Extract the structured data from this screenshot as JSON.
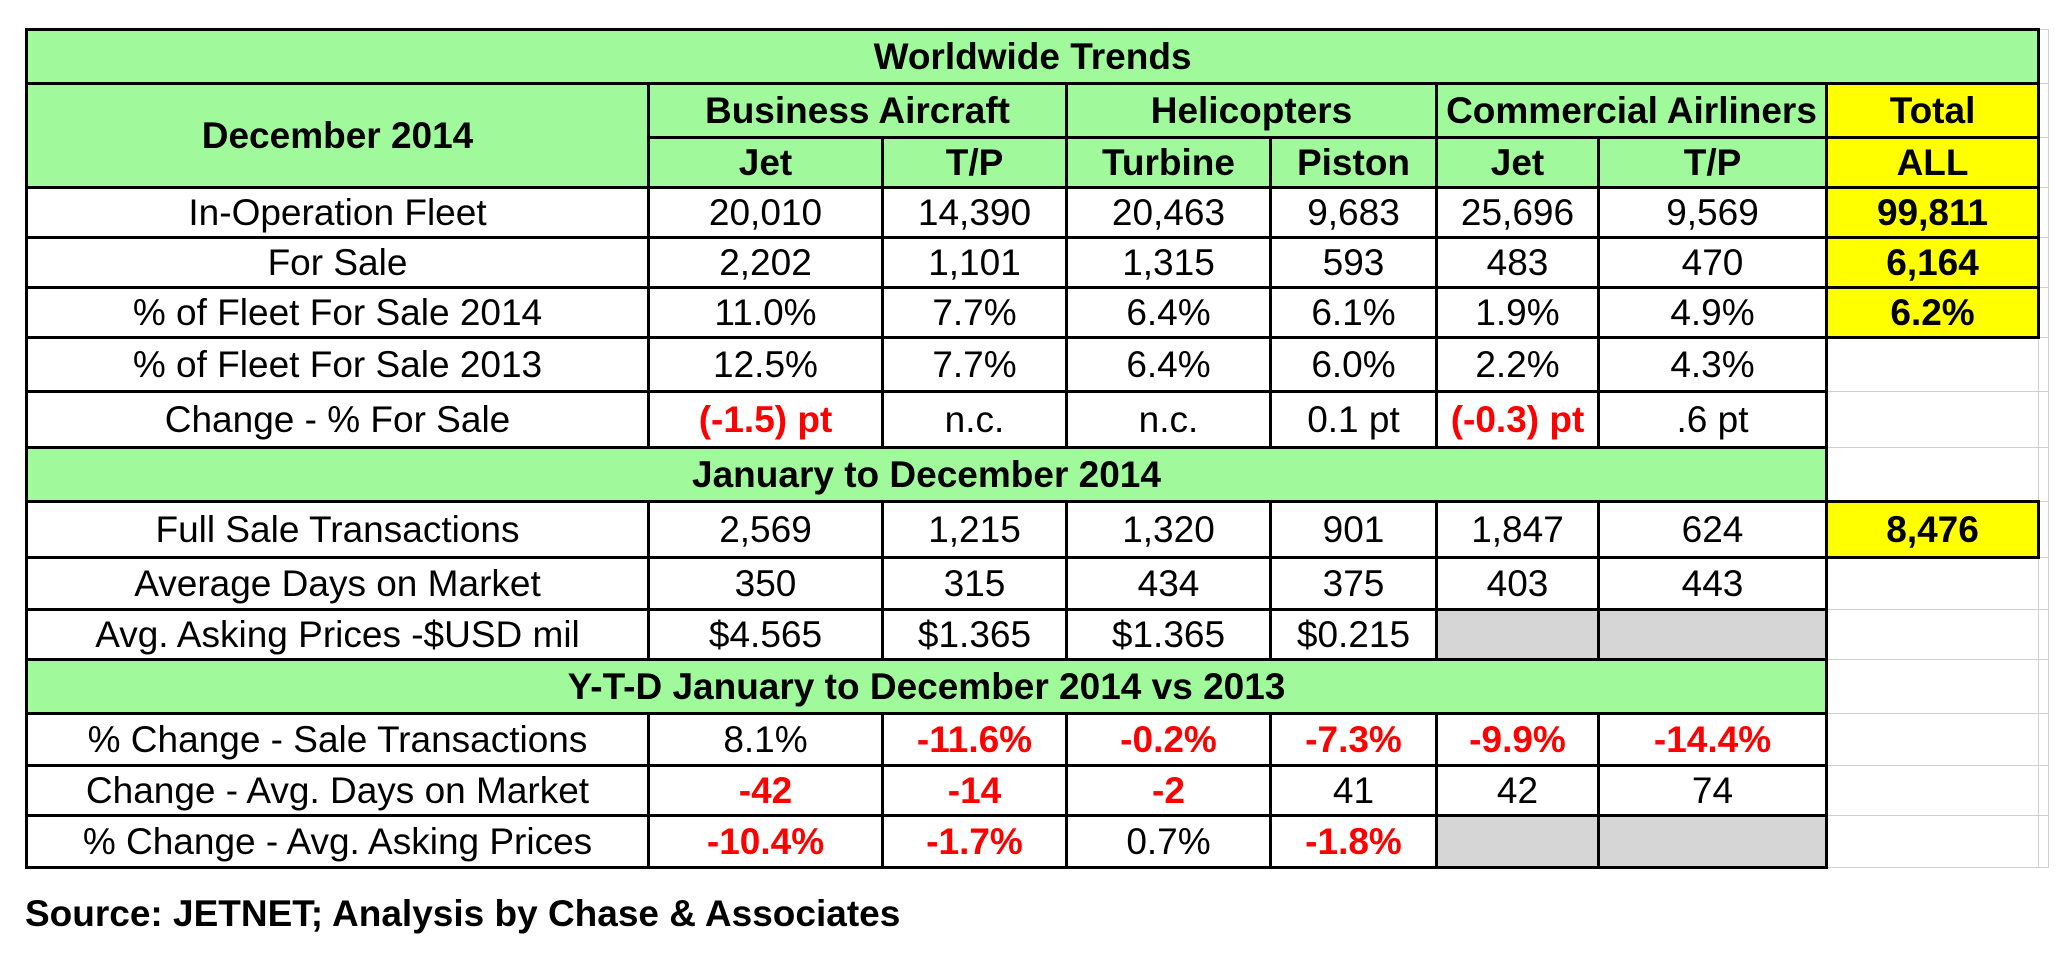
{
  "title": "Worldwide Trends",
  "date_label": "December 2014",
  "groups": {
    "business": "Business Aircraft",
    "helicopters": "Helicopters",
    "commercial": "Commercial Airliners",
    "total": "Total"
  },
  "subheaders": [
    "Jet",
    "T/P",
    "Turbine",
    "Piston",
    "Jet",
    "T/P",
    "ALL"
  ],
  "section1_rows": [
    {
      "label": "In-Operation Fleet",
      "values": [
        "20,010",
        "14,390",
        "20,463",
        "9,683",
        "25,696",
        "9,569"
      ],
      "total": "99,811"
    },
    {
      "label": "For Sale",
      "values": [
        "2,202",
        "1,101",
        "1,315",
        "593",
        "483",
        "470"
      ],
      "total": "6,164"
    },
    {
      "label": "% of Fleet For Sale 2014",
      "values": [
        "11.0%",
        "7.7%",
        "6.4%",
        "6.1%",
        "1.9%",
        "4.9%"
      ],
      "total": "6.2%"
    },
    {
      "label": "% of Fleet For Sale 2013",
      "values": [
        "12.5%",
        "7.7%",
        "6.4%",
        "6.0%",
        "2.2%",
        "4.3%"
      ],
      "total": ""
    },
    {
      "label": "Change - % For Sale",
      "values": [
        "(-1.5) pt",
        "n.c.",
        "n.c.",
        "0.1 pt",
        "(-0.3) pt",
        ".6 pt"
      ],
      "total": ""
    }
  ],
  "section2_title": "January to December 2014",
  "section2_rows": [
    {
      "label": "Full Sale Transactions",
      "values": [
        "2,569",
        "1,215",
        "1,320",
        "901",
        "1,847",
        "624"
      ],
      "total": "8,476"
    },
    {
      "label": "Average Days on Market",
      "values": [
        "350",
        "315",
        "434",
        "375",
        "403",
        "443"
      ],
      "total": ""
    },
    {
      "label": "Avg. Asking Prices -$USD mil",
      "values": [
        "$4.565",
        "$1.365",
        "$1.365",
        "$0.215",
        "",
        ""
      ],
      "total": ""
    }
  ],
  "section3_title": "Y-T-D January to December 2014 vs 2013",
  "section3_rows": [
    {
      "label": "% Change  - Sale Transactions",
      "values": [
        "8.1%",
        "-11.6%",
        "-0.2%",
        "-7.3%",
        "-9.9%",
        "-14.4%"
      ],
      "total": ""
    },
    {
      "label": "Change -  Avg. Days on Market",
      "values": [
        "-42",
        "-14",
        "-2",
        "41",
        "42",
        "74"
      ],
      "total": ""
    },
    {
      "label": "% Change - Avg. Asking Prices",
      "values": [
        "-10.4%",
        "-1.7%",
        "0.7%",
        "-1.8%",
        "",
        ""
      ],
      "total": ""
    }
  ],
  "source": "Source: JETNET; Analysis by Chase & Associates",
  "colors": {
    "header_green": "#a0fa9c",
    "total_yellow": "#ffff00",
    "negative_red": "#ff0000",
    "empty_grey": "#d6d6d6"
  }
}
